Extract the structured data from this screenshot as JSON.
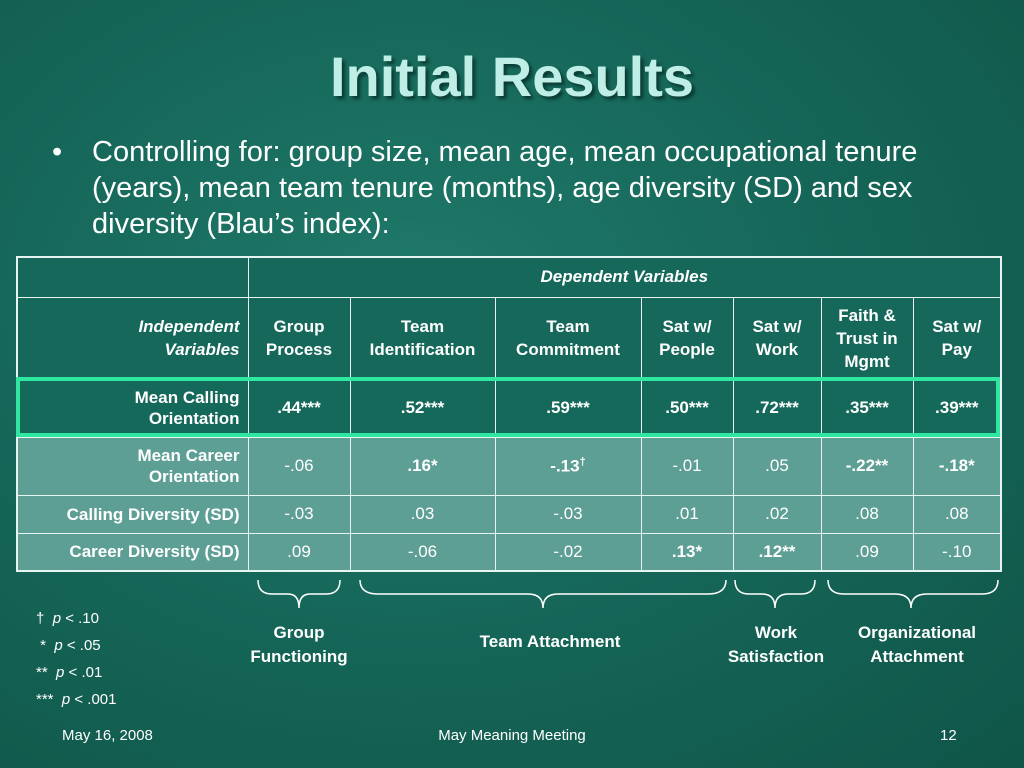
{
  "slide": {
    "title": "Initial Results",
    "bullet": "Controlling for: group size, mean age, mean occupational tenure (years), mean team tenure (months), age diversity (SD) and sex diversity (Blau’s index):"
  },
  "table": {
    "dependent_header": "Dependent Variables",
    "independent_header": [
      "Independent",
      "Variables"
    ],
    "columns": [
      [
        "Group",
        "Process"
      ],
      [
        "Team",
        "Identification"
      ],
      [
        "Team",
        "Commitment"
      ],
      [
        "Sat w/",
        "People"
      ],
      [
        "Sat w/",
        "Work"
      ],
      [
        "Faith &",
        "Trust in",
        "Mgmt"
      ],
      [
        "Sat w/",
        "Pay"
      ]
    ],
    "rows": [
      {
        "label": [
          "Mean Calling",
          "Orientation"
        ],
        "values": [
          ".44***",
          ".52***",
          ".59***",
          ".50***",
          ".72***",
          ".35***",
          ".39***"
        ]
      },
      {
        "label": [
          "Mean Career",
          "Orientation"
        ],
        "values": [
          "-.06",
          ".16*",
          "-.13",
          "-.01",
          ".05",
          "-.22**",
          "-.18*"
        ],
        "dagger": "†"
      },
      {
        "label": [
          "Calling Diversity (SD)"
        ],
        "values": [
          "-.03",
          ".03",
          "-.03",
          ".01",
          ".02",
          ".08",
          ".08"
        ]
      },
      {
        "label": [
          "Career Diversity (SD)"
        ],
        "values": [
          ".09",
          "-.06",
          "-.02",
          ".13*",
          ".12**",
          ".09",
          "-.10"
        ]
      }
    ]
  },
  "groups": {
    "group_functioning": [
      "Group",
      "Functioning"
    ],
    "team_attachment": "Team Attachment",
    "work_satisfaction": [
      "Work",
      "Satisfaction"
    ],
    "organizational_attachment": [
      "Organizational",
      "Attachment"
    ]
  },
  "notes": [
    {
      "symbol": "†",
      "p": "p",
      "rest": " < .10"
    },
    {
      "symbol": "*",
      "p": "p",
      "rest": " < .05"
    },
    {
      "symbol": "**",
      "p": "p",
      "rest": " < .01"
    },
    {
      "symbol": "***",
      "p": "p",
      "rest": " < .001"
    }
  ],
  "footer": {
    "date": "May 16, 2008",
    "event": "May Meaning Meeting",
    "page": "12"
  },
  "colors": {
    "background": "#16685a",
    "title": "#bfeee6",
    "highlight_border": "#2fe7a0",
    "light_row": "#5e9f95"
  }
}
